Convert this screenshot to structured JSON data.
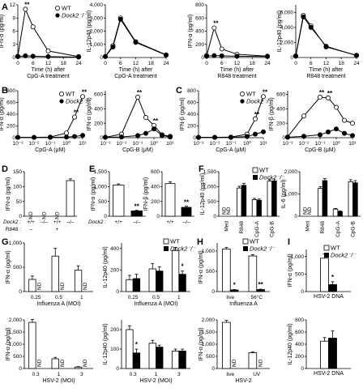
{
  "figure": {
    "panels": [
      "A",
      "B",
      "C",
      "D",
      "E",
      "F",
      "G",
      "H",
      "I"
    ],
    "legend": {
      "wt": "WT",
      "ko": "Dock2⁻/⁻"
    }
  },
  "chart_data": [
    {
      "id": "A1",
      "type": "line",
      "ylabel": "IFN-α (pg/ml)",
      "xlabel": "Time (h) after CpG-A treatment",
      "xticks": [
        "0",
        "6",
        "12",
        "18",
        "24"
      ],
      "yticks": [
        "0",
        "3",
        "6",
        "9",
        "12"
      ],
      "xlim": [
        0,
        24
      ],
      "ylim": [
        0,
        12
      ],
      "legend": true,
      "series": [
        {
          "name": "WT",
          "x": [
            0,
            3,
            6,
            12,
            24
          ],
          "y": [
            0.3,
            11,
            7,
            1.5,
            0.2
          ]
        },
        {
          "name": "Dock2⁻/⁻",
          "x": [
            0,
            3,
            6,
            12,
            24
          ],
          "y": [
            0.2,
            0.4,
            0.3,
            0.2,
            0.1
          ]
        }
      ],
      "annotations": [
        {
          "x": 3,
          "y": 11,
          "text": "**"
        }
      ]
    },
    {
      "id": "A2",
      "type": "line",
      "ylabel": "IL-12p40 (pg/ml)",
      "xlabel": "Time (h) after CpG-A treatment",
      "xticks": [
        "0",
        "6",
        "12",
        "18",
        "24"
      ],
      "yticks": [
        "0",
        "1,000",
        "2,000",
        "3,000",
        "4,000"
      ],
      "xlim": [
        0,
        24
      ],
      "ylim": [
        0,
        4000
      ],
      "series": [
        {
          "name": "WT",
          "x": [
            0,
            3,
            6,
            12,
            24
          ],
          "y": [
            80,
            900,
            3000,
            1200,
            200
          ]
        },
        {
          "name": "Dock2⁻/⁻",
          "x": [
            0,
            3,
            6,
            12,
            24
          ],
          "y": [
            80,
            800,
            2900,
            1150,
            180
          ]
        }
      ]
    },
    {
      "id": "A3",
      "type": "line",
      "ylabel": "IFN-α (pg/ml)",
      "xlabel": "Time (h) after R848 treatment",
      "xticks": [
        "0",
        "6",
        "12",
        "18",
        "24"
      ],
      "yticks": [
        "0",
        "200",
        "400",
        "600",
        "800"
      ],
      "xlim": [
        0,
        24
      ],
      "ylim": [
        0,
        800
      ],
      "series": [
        {
          "name": "WT",
          "x": [
            0,
            3,
            6,
            12,
            24
          ],
          "y": [
            30,
            450,
            130,
            50,
            20
          ]
        },
        {
          "name": "Dock2⁻/⁻",
          "x": [
            0,
            3,
            6,
            12,
            24
          ],
          "y": [
            20,
            30,
            25,
            20,
            15
          ]
        }
      ],
      "annotations": [
        {
          "x": 3,
          "y": 450,
          "text": "**"
        }
      ]
    },
    {
      "id": "A4",
      "type": "line",
      "ylabel": "IL-12p40 (pg/ml)",
      "xlabel": "Time (h) after R848 treatment",
      "xticks": [
        "0",
        "6",
        "12",
        "18",
        "24"
      ],
      "yticks": [
        "0",
        "2,000",
        "4,000",
        "6,000"
      ],
      "xlim": [
        0,
        24
      ],
      "ylim": [
        0,
        7000
      ],
      "series": [
        {
          "name": "WT",
          "x": [
            0,
            3,
            6,
            12,
            24
          ],
          "y": [
            200,
            5600,
            4200,
            1400,
            300
          ]
        },
        {
          "name": "Dock2⁻/⁻",
          "x": [
            0,
            3,
            6,
            12,
            24
          ],
          "y": [
            200,
            5400,
            4000,
            1500,
            250
          ]
        }
      ]
    },
    {
      "id": "B1",
      "type": "line",
      "ylabel": "IFN-α (pg/ml)",
      "xlabel": "CpG-A (μM)",
      "xticks": [
        "10⁻³",
        "10⁻²",
        "10⁻¹",
        "10⁰",
        "10¹"
      ],
      "yticks": [
        "0",
        "200",
        "400",
        "600",
        "800"
      ],
      "xlim": [
        -3,
        1
      ],
      "ylim": [
        0,
        800
      ],
      "legend": true,
      "series": [
        {
          "name": "WT",
          "x": [
            -3,
            -2,
            -1,
            0,
            0.5,
            1
          ],
          "y": [
            5,
            5,
            10,
            80,
            350,
            700
          ]
        },
        {
          "name": "Dock2⁻/⁻",
          "x": [
            -3,
            -2,
            -1,
            0,
            0.5,
            1
          ],
          "y": [
            5,
            5,
            5,
            10,
            20,
            40
          ]
        }
      ],
      "annotations": [
        {
          "x": 0.5,
          "y": 350,
          "text": "**"
        },
        {
          "x": 1,
          "y": 700,
          "text": "**"
        }
      ]
    },
    {
      "id": "B2",
      "type": "line",
      "ylabel": "IFN-α (pg/ml)",
      "xlabel": "CpG-B (μM)",
      "xticks": [
        "10⁻³",
        "10⁻²",
        "10⁻¹",
        "10⁰",
        "10¹"
      ],
      "yticks": [
        "0",
        "200",
        "400",
        "600"
      ],
      "xlim": [
        -3,
        1
      ],
      "ylim": [
        0,
        650
      ],
      "series": [
        {
          "name": "WT",
          "x": [
            -3,
            -2,
            -1,
            -0.5,
            0,
            0.5,
            1
          ],
          "y": [
            5,
            50,
            560,
            280,
            170,
            40,
            20
          ]
        },
        {
          "name": "Dock2⁻/⁻",
          "x": [
            -3,
            -2,
            -1,
            -0.5,
            0,
            0.5,
            1
          ],
          "y": [
            5,
            10,
            30,
            60,
            120,
            30,
            10
          ]
        }
      ],
      "annotations": [
        {
          "x": -1,
          "y": 560,
          "text": "**"
        },
        {
          "x": 0,
          "y": 170,
          "text": "**"
        }
      ]
    },
    {
      "id": "C1",
      "type": "line",
      "ylabel": "IFN-β (pg/ml)",
      "xlabel": "CpG-A (μM)",
      "xticks": [
        "10⁻³",
        "10⁻²",
        "10⁻¹",
        "10⁰",
        "10¹"
      ],
      "yticks": [
        "0",
        "200",
        "400",
        "600",
        "800"
      ],
      "xlim": [
        -3,
        1
      ],
      "ylim": [
        0,
        800
      ],
      "legend": true,
      "series": [
        {
          "name": "WT",
          "x": [
            -3,
            -2,
            -1,
            0,
            0.5,
            1
          ],
          "y": [
            5,
            5,
            10,
            60,
            320,
            700
          ]
        },
        {
          "name": "Dock2⁻/⁻",
          "x": [
            -3,
            -2,
            -1,
            0,
            0.5,
            1
          ],
          "y": [
            5,
            5,
            5,
            20,
            60,
            100
          ]
        }
      ],
      "annotations": [
        {
          "x": 0.5,
          "y": 320,
          "text": "**"
        },
        {
          "x": 1,
          "y": 700,
          "text": "**"
        }
      ]
    },
    {
      "id": "C2",
      "type": "line",
      "ylabel": "IFN-β (pg/ml)",
      "xlabel": "CpG-B (μM)",
      "xticks": [
        "10⁻³",
        "10⁻²",
        "10⁻¹",
        "10⁰",
        "10¹"
      ],
      "yticks": [
        "0",
        "200",
        "400",
        "600"
      ],
      "xlim": [
        -3,
        1
      ],
      "ylim": [
        0,
        650
      ],
      "series": [
        {
          "name": "WT",
          "x": [
            -3,
            -2,
            -1,
            -0.5,
            0,
            0.5,
            1
          ],
          "y": [
            10,
            300,
            560,
            550,
            420,
            240,
            200
          ]
        },
        {
          "name": "Dock2⁻/⁻",
          "x": [
            -3,
            -2,
            -1,
            -0.5,
            0,
            0.5,
            1
          ],
          "y": [
            5,
            20,
            40,
            80,
            120,
            60,
            30
          ]
        }
      ],
      "annotations": [
        {
          "x": -1,
          "y": 560,
          "text": "**"
        },
        {
          "x": -0.5,
          "y": 550,
          "text": "**"
        }
      ]
    },
    {
      "id": "D",
      "type": "bar",
      "ylabel": "IFN-α (pg/ml)",
      "yticks": [
        "0",
        "50",
        "100",
        "150"
      ],
      "ylim": [
        0,
        150
      ],
      "bars": [
        {
          "value": 0,
          "color": "white",
          "nd": true
        },
        {
          "value": 0,
          "color": "white",
          "nd": true
        },
        {
          "value": 0,
          "color": "white",
          "nd": true
        },
        {
          "value": 120,
          "color": "white",
          "err": 6
        }
      ],
      "rowlabels": [
        "Dock2 :",
        "R848 :"
      ],
      "rows": [
        [
          "+/+",
          "–/–",
          "+/+",
          "–/–"
        ],
        [
          "–",
          "",
          "+",
          ""
        ]
      ]
    },
    {
      "id": "E1",
      "type": "bar",
      "ylabel": "IFN-α (pg/ml)",
      "yticks": [
        "0",
        "500",
        "1,000",
        "1,500"
      ],
      "ylim": [
        0,
        1500
      ],
      "bars": [
        {
          "value": 1050,
          "color": "white",
          "err": 40
        },
        {
          "value": 180,
          "color": "black",
          "err": 20,
          "star": "**"
        }
      ],
      "rowlabels": [
        "Dock2 :"
      ],
      "rows": [
        [
          "+/+",
          "–/–"
        ]
      ]
    },
    {
      "id": "E2",
      "type": "bar",
      "ylabel": "IFN-β (pg/ml)",
      "yticks": [
        "0",
        "200",
        "400",
        "600"
      ],
      "ylim": [
        0,
        600
      ],
      "bars": [
        {
          "value": 440,
          "color": "white",
          "err": 25
        },
        {
          "value": 120,
          "color": "black",
          "err": 15,
          "star": "**"
        }
      ],
      "rows": [
        [
          "+/+",
          "–/–"
        ]
      ]
    },
    {
      "id": "F1",
      "type": "bar",
      "ylabel": "IL-12p40 (pg/ml)",
      "yticks": [
        "0",
        "500",
        "1,000",
        "1,500"
      ],
      "ylim": [
        0,
        1500
      ],
      "categories": [
        "Med",
        "R848",
        "CpG-A",
        "CpG-B"
      ],
      "legend": true,
      "series": [
        {
          "name": "WT",
          "values": [
            0,
            950,
            560,
            1180
          ],
          "err": [
            0,
            60,
            40,
            50
          ],
          "nd": [
            true,
            false,
            false,
            false
          ]
        },
        {
          "name": "Dock2⁻/⁻",
          "values": [
            0,
            1040,
            540,
            1190
          ],
          "err": [
            0,
            70,
            40,
            60
          ],
          "nd": [
            true,
            false,
            false,
            false
          ]
        }
      ]
    },
    {
      "id": "F2",
      "type": "bar",
      "ylabel": "IL-6 (pg/ml)",
      "yticks": [
        "0",
        "1,000",
        "2,000"
      ],
      "ylim": [
        0,
        2000
      ],
      "categories": [
        "Med",
        "R848",
        "CpG-A",
        "CpG-B"
      ],
      "series": [
        {
          "name": "WT",
          "values": [
            0,
            1250,
            320,
            1550
          ],
          "err": [
            0,
            80,
            30,
            90
          ],
          "nd": [
            true,
            false,
            false,
            false
          ]
        },
        {
          "name": "Dock2⁻/⁻",
          "values": [
            0,
            1600,
            210,
            1500
          ],
          "err": [
            0,
            90,
            30,
            100
          ],
          "nd": [
            true,
            false,
            false,
            false
          ]
        }
      ]
    },
    {
      "id": "G1",
      "type": "bar",
      "ylabel": "IFN-α (pg/ml)",
      "xlabel": "Influenza A (MOI)",
      "yticks": [
        "0",
        "500",
        "1,000"
      ],
      "ylim": [
        0,
        1000
      ],
      "categories": [
        "0.25",
        "0.5",
        "1"
      ],
      "series": [
        {
          "name": "WT",
          "values": [
            250,
            730,
            440
          ],
          "err": [
            70,
            160,
            90
          ]
        },
        {
          "name": "Dock2⁻/⁻",
          "values": [
            0,
            0,
            0
          ],
          "nd": [
            true,
            true,
            true
          ]
        }
      ]
    },
    {
      "id": "G2",
      "type": "bar",
      "ylabel": "IL-12p40 (pg/ml)",
      "xlabel": "Influenza A (MOI)",
      "yticks": [
        "0",
        "200",
        "400"
      ],
      "ylim": [
        0,
        450
      ],
      "categories": [
        "0.25",
        "0.5",
        "1"
      ],
      "legend": true,
      "series": [
        {
          "name": "WT",
          "values": [
            110,
            210,
            380
          ],
          "err": [
            40,
            50,
            30
          ]
        },
        {
          "name": "Dock2⁻/⁻",
          "values": [
            120,
            190,
            160
          ],
          "err": [
            40,
            40,
            30
          ]
        }
      ],
      "annotations": [
        {
          "category": "1",
          "text": "*"
        }
      ]
    },
    {
      "id": "G3",
      "type": "bar",
      "ylabel": "IFN-α (pg/ml)",
      "xlabel": "HSV-2 (MOI)",
      "yticks": [
        "0",
        "500",
        "1,000",
        "1,500",
        "2,000"
      ],
      "ylim": [
        0,
        2000
      ],
      "categories": [
        "0.3",
        "1",
        "3"
      ],
      "series": [
        {
          "name": "WT",
          "values": [
            1900,
            400,
            60
          ],
          "err": [
            120,
            60,
            20
          ]
        },
        {
          "name": "Dock2⁻/⁻",
          "values": [
            0,
            0,
            0
          ],
          "nd": [
            true,
            true,
            true
          ]
        }
      ]
    },
    {
      "id": "G4",
      "type": "bar",
      "ylabel": "IL-12p40 (pg/ml)",
      "xlabel": "HSV-2 (MOI)",
      "yticks": [
        "0",
        "100",
        "200"
      ],
      "ylim": [
        0,
        250
      ],
      "categories": [
        "0.3",
        "1",
        "3"
      ],
      "series": [
        {
          "name": "WT",
          "values": [
            200,
            130,
            90
          ],
          "err": [
            20,
            15,
            10
          ]
        },
        {
          "name": "Dock2⁻/⁻",
          "values": [
            80,
            110,
            90
          ],
          "err": [
            20,
            10,
            10
          ]
        }
      ],
      "annotations": [
        {
          "category": "0.3",
          "text": "*"
        }
      ]
    },
    {
      "id": "H1",
      "type": "bar",
      "ylabel": "IFN-α (pg/ml)",
      "xlabel": "Influenza A",
      "yticks": [
        "0",
        "500",
        "1,000"
      ],
      "ylim": [
        0,
        1200
      ],
      "categories": [
        "live",
        "56°C"
      ],
      "legend": true,
      "series": [
        {
          "name": "WT",
          "values": [
            1050,
            880
          ],
          "err": [
            40,
            30
          ]
        },
        {
          "name": "Dock2⁻/⁻",
          "values": [
            40,
            50
          ],
          "err": [
            10,
            10
          ]
        }
      ],
      "annotations": [
        {
          "category": "live",
          "text": "*"
        },
        {
          "category": "56°C",
          "text": "**"
        }
      ]
    },
    {
      "id": "H2",
      "type": "bar",
      "ylabel": "IFN-α (pg/ml)",
      "xlabel": "HSV-2",
      "yticks": [
        "0",
        "500",
        "1,000",
        "1,500",
        "2,000"
      ],
      "ylim": [
        0,
        2000
      ],
      "categories": [
        "live",
        "UV"
      ],
      "series": [
        {
          "name": "WT",
          "values": [
            1900,
            650
          ],
          "err": [
            80,
            40
          ]
        },
        {
          "name": "Dock2⁻/⁻",
          "values": [
            0,
            0
          ],
          "nd": [
            true,
            true
          ]
        }
      ]
    },
    {
      "id": "I1",
      "type": "bar",
      "ylabel": "IFN-α (pg/ml)",
      "xlabel": "HSV-2 DNA",
      "yticks": [
        "0",
        "500",
        "1,000"
      ],
      "ylim": [
        0,
        1200
      ],
      "categories": [
        ""
      ],
      "legend": true,
      "series": [
        {
          "name": "WT",
          "values": [
            950
          ],
          "err": [
            120
          ]
        },
        {
          "name": "Dock2⁻/⁻",
          "values": [
            200
          ],
          "err": [
            80
          ]
        }
      ],
      "annotations": [
        {
          "category": "",
          "text": "*"
        }
      ]
    },
    {
      "id": "I2",
      "type": "bar",
      "ylabel": "IL-12p40 (pg/ml)",
      "xlabel": "HSV-2 DNA",
      "yticks": [
        "0",
        "200",
        "400",
        "600",
        "800"
      ],
      "ylim": [
        0,
        800
      ],
      "categories": [
        ""
      ],
      "series": [
        {
          "name": "WT",
          "values": [
            450
          ],
          "err": [
            60
          ]
        },
        {
          "name": "Dock2⁻/⁻",
          "values": [
            500
          ],
          "err": [
            120
          ]
        }
      ]
    }
  ]
}
